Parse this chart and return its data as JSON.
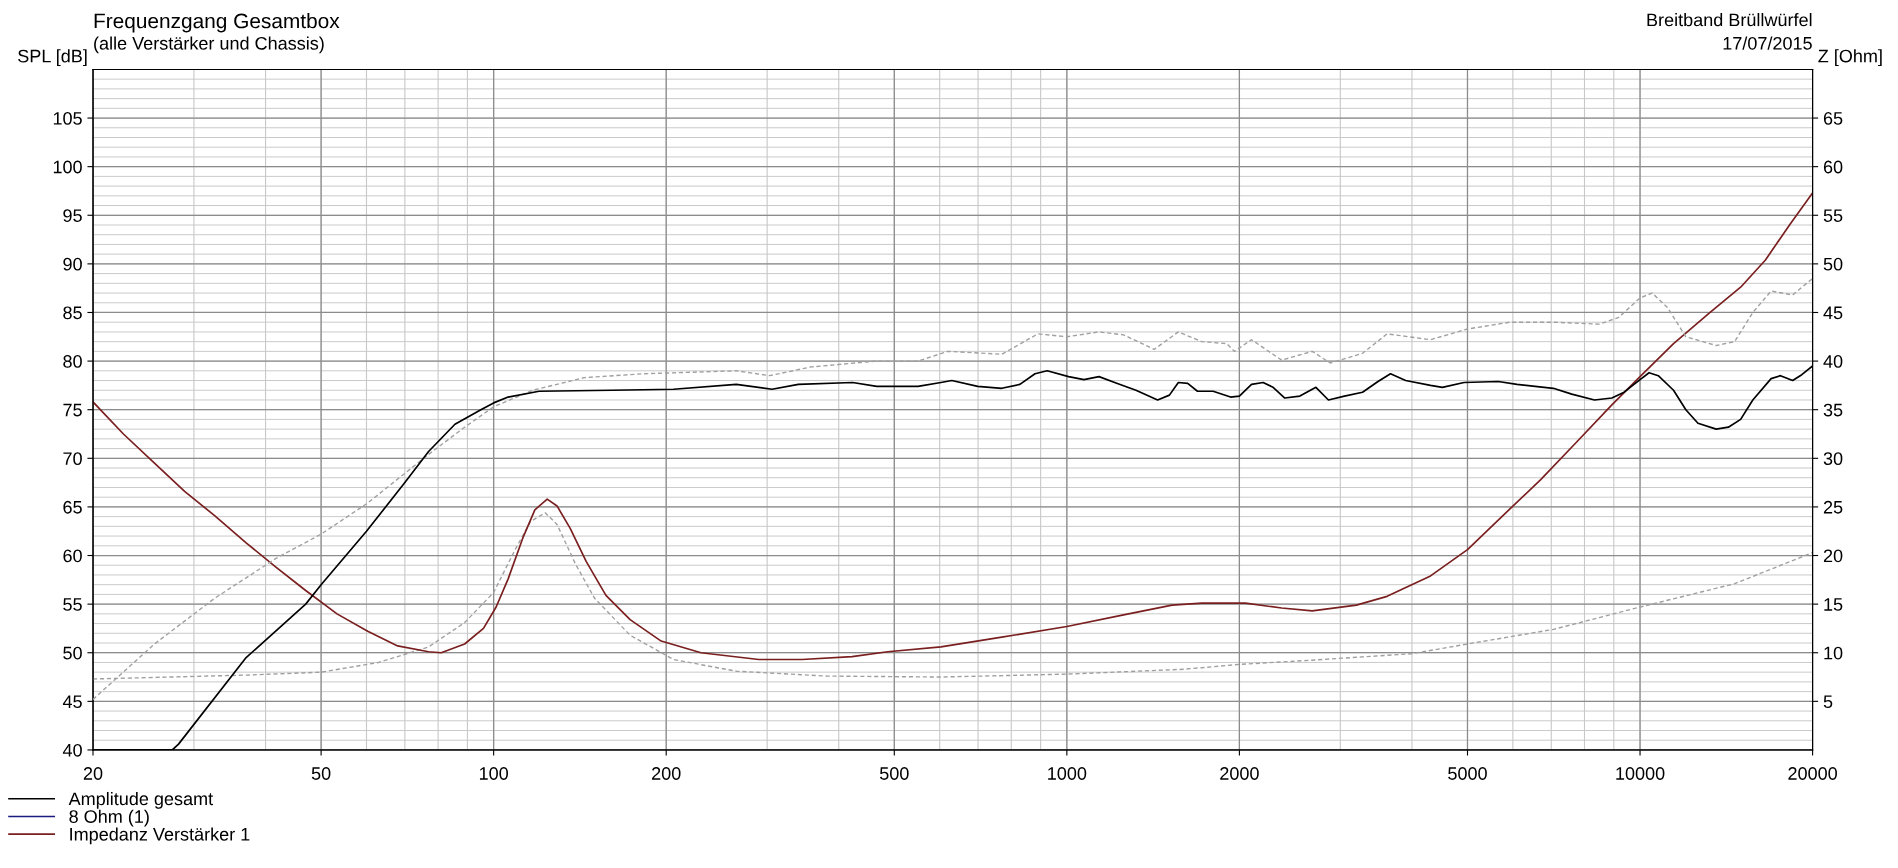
{
  "chart_data": {
    "type": "line",
    "title": "Frequenzgang Gesamtbox",
    "subtitle": "(alle Verstärker und Chassis)",
    "ylabel": "SPL [dB]",
    "y2label": "Z [Ohm]",
    "annotations": [
      "Breitband Brüllwürfel",
      "17/07/2015"
    ],
    "log": "x",
    "grid": true,
    "legend": "bottom left",
    "line_style": "solid",
    "marker": "none",
    "xlim": [
      20,
      20000
    ],
    "xticks": [
      20,
      50,
      100,
      200,
      500,
      1000,
      2000,
      5000,
      10000,
      20000
    ],
    "ylim": [
      40,
      110
    ],
    "yticks": [
      40,
      45,
      50,
      55,
      60,
      65,
      70,
      75,
      80,
      85,
      90,
      95,
      100,
      105
    ],
    "y2lim": [
      0,
      70
    ],
    "y2ticks": [
      5,
      10,
      15,
      20,
      25,
      30,
      35,
      40,
      45,
      50,
      55,
      60,
      65
    ],
    "series": [
      {
        "color": "#a0a0a0",
        "line_style": "dashed",
        "x": [
          20,
          25.6,
          32.6,
          41.7,
          50,
          60.3,
          77,
          89,
          100,
          117,
          144,
          183,
          265,
          303,
          358,
          466,
          550,
          620,
          770,
          890,
          1000,
          1138,
          1256,
          1420,
          1565,
          1720,
          1900,
          1960,
          2100,
          2370,
          2680,
          2880,
          3280,
          3620,
          4310,
          5000,
          5930,
          7060,
          8500,
          9180,
          10000,
          10500,
          11170,
          12020,
          13580,
          14620,
          15730,
          16930,
          18460,
          20000
        ],
        "values": [
          45.2,
          50.9,
          55.6,
          59.7,
          62.2,
          65.4,
          70.4,
          73.2,
          75.3,
          77,
          78.3,
          78.7,
          79,
          78.5,
          79.4,
          80,
          80,
          81,
          80.7,
          82.8,
          82.5,
          83,
          82.7,
          81.2,
          83,
          82,
          81.8,
          81,
          82.2,
          80.1,
          81,
          79.8,
          80.8,
          82.8,
          82.2,
          83.3,
          84,
          84,
          83.8,
          84.5,
          86.5,
          87,
          85.5,
          82.5,
          81.6,
          82,
          85,
          87.2,
          86.8,
          88.5
        ]
      },
      {
        "color": "#a0a0a0",
        "line_style": "dashed",
        "axis": "y2",
        "x": [
          20,
          37,
          50,
          63,
          77,
          89,
          100,
          109,
          116,
          123,
          129,
          139,
          150,
          173,
          206,
          265,
          381,
          603,
          1000,
          1600,
          2000,
          2620,
          4000,
          5000,
          7060,
          10000,
          14620,
          20000
        ],
        "values": [
          7.3,
          7.7,
          8,
          9,
          10.6,
          13.1,
          16.2,
          20.6,
          23.5,
          24.4,
          23.2,
          19.1,
          15.6,
          11.8,
          9.3,
          8.1,
          7.6,
          7.5,
          7.8,
          8.3,
          8.8,
          9.2,
          9.9,
          10.9,
          12.4,
          14.7,
          17.1,
          20.3
        ]
      },
      {
        "name": "Amplitude gesamt",
        "color": "#000000",
        "x": [
          20,
          27.5,
          28.2,
          37,
          47,
          50,
          60,
          70,
          77,
          85.6,
          95,
          100,
          106,
          120,
          161,
          206,
          265,
          306,
          340,
          423,
          466,
          550,
          603,
          630,
          699,
          770,
          828,
          880,
          924,
          1007,
          1071,
          1138,
          1225,
          1320,
          1440,
          1510,
          1565,
          1625,
          1690,
          1800,
          1930,
          2000,
          2100,
          2200,
          2290,
          2400,
          2550,
          2720,
          2860,
          3050,
          3280,
          3490,
          3670,
          3900,
          4310,
          4520,
          4930,
          5660,
          6100,
          6560,
          7060,
          7600,
          8330,
          8930,
          9380,
          10000,
          10370,
          10760,
          11440,
          12020,
          12620,
          13580,
          14260,
          14980,
          15730,
          16930,
          17580,
          18460,
          19150,
          20000
        ],
        "values": [
          40,
          40,
          40.6,
          49.5,
          55,
          57,
          62.5,
          67.5,
          70.7,
          73.5,
          75,
          75.7,
          76.3,
          76.9,
          77,
          77.1,
          77.6,
          77.1,
          77.6,
          77.8,
          77.4,
          77.4,
          77.8,
          78,
          77.4,
          77.2,
          77.6,
          78.7,
          79,
          78.4,
          78.1,
          78.4,
          77.7,
          77,
          76,
          76.5,
          77.8,
          77.7,
          76.9,
          76.9,
          76.3,
          76.4,
          77.6,
          77.8,
          77.3,
          76.2,
          76.4,
          77.3,
          76,
          76.4,
          76.8,
          77.9,
          78.7,
          78,
          77.5,
          77.3,
          77.8,
          77.9,
          77.6,
          77.4,
          77.2,
          76.6,
          76,
          76.2,
          76.8,
          78.1,
          78.8,
          78.5,
          77,
          75,
          73.6,
          73,
          73.2,
          74,
          76,
          78.2,
          78.5,
          78,
          78.6,
          79.5
        ]
      },
      {
        "name": "8 Ohm (1)",
        "color": "#1a1a80",
        "axis": "y2"
      },
      {
        "name": "Impedanz Verstärker 1",
        "color": "#7a1f1f",
        "axis": "y2",
        "x": [
          20,
          22.6,
          25.6,
          28.9,
          32.6,
          37,
          41.7,
          47,
          53.3,
          60.3,
          68,
          77,
          81,
          89,
          96,
          101,
          106,
          112.6,
          118,
          124,
          129,
          136,
          145,
          157,
          173,
          196,
          230,
          290,
          345,
          422,
          487,
          603,
          770,
          1000,
          1256,
          1526,
          1720,
          2050,
          2370,
          2680,
          3200,
          3620,
          4310,
          5000,
          5930,
          6710,
          7760,
          8930,
          10000,
          11440,
          13250,
          14980,
          16550,
          18230,
          20000
        ],
        "values": [
          35.8,
          32.5,
          29.5,
          26.6,
          24.1,
          21.3,
          18.8,
          16.4,
          14,
          12.2,
          10.7,
          10.1,
          10,
          10.9,
          12.5,
          14.7,
          17.6,
          21.9,
          24.7,
          25.8,
          25.1,
          22.8,
          19.4,
          15.9,
          13.4,
          11.2,
          10,
          9.3,
          9.3,
          9.6,
          10.1,
          10.6,
          11.6,
          12.7,
          13.9,
          14.9,
          15.1,
          15.1,
          14.6,
          14.3,
          14.9,
          15.8,
          17.9,
          20.6,
          24.8,
          27.8,
          31.7,
          35.5,
          38.4,
          41.8,
          45,
          47.6,
          50.4,
          54,
          57.3
        ]
      }
    ]
  }
}
